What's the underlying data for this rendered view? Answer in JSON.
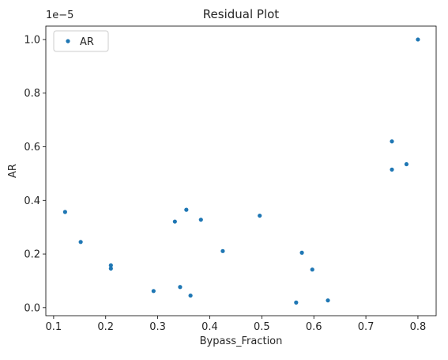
{
  "chart_data": {
    "type": "scatter",
    "title": "Residual Plot",
    "xlabel": "Bypass_Fraction",
    "ylabel": "AR",
    "y_exponent_label": "1e−5",
    "xlim": [
      0.085,
      0.835
    ],
    "ylim": [
      -0.03,
      1.05
    ],
    "x_ticks": [
      0.1,
      0.2,
      0.3,
      0.4,
      0.5,
      0.6,
      0.7,
      0.8
    ],
    "x_tick_labels": [
      "0.1",
      "0.2",
      "0.3",
      "0.4",
      "0.5",
      "0.6",
      "0.7",
      "0.8"
    ],
    "y_ticks": [
      0.0,
      0.2,
      0.4,
      0.6,
      0.8,
      1.0
    ],
    "y_tick_labels": [
      "0.0",
      "0.2",
      "0.4",
      "0.6",
      "0.8",
      "1.0"
    ],
    "grid": false,
    "legend_position": "upper-left",
    "marker_color": "#1f77b4",
    "series": [
      {
        "name": "AR",
        "points": [
          {
            "x": 0.122,
            "y": 0.357
          },
          {
            "x": 0.152,
            "y": 0.245
          },
          {
            "x": 0.21,
            "y": 0.158
          },
          {
            "x": 0.21,
            "y": 0.146
          },
          {
            "x": 0.292,
            "y": 0.062
          },
          {
            "x": 0.333,
            "y": 0.321
          },
          {
            "x": 0.343,
            "y": 0.077
          },
          {
            "x": 0.355,
            "y": 0.365
          },
          {
            "x": 0.363,
            "y": 0.045
          },
          {
            "x": 0.383,
            "y": 0.328
          },
          {
            "x": 0.425,
            "y": 0.211
          },
          {
            "x": 0.496,
            "y": 0.343
          },
          {
            "x": 0.566,
            "y": 0.019
          },
          {
            "x": 0.577,
            "y": 0.205
          },
          {
            "x": 0.597,
            "y": 0.142
          },
          {
            "x": 0.627,
            "y": 0.027
          },
          {
            "x": 0.75,
            "y": 0.62
          },
          {
            "x": 0.75,
            "y": 0.515
          },
          {
            "x": 0.778,
            "y": 0.535
          },
          {
            "x": 0.8,
            "y": 1.0
          }
        ]
      }
    ]
  }
}
